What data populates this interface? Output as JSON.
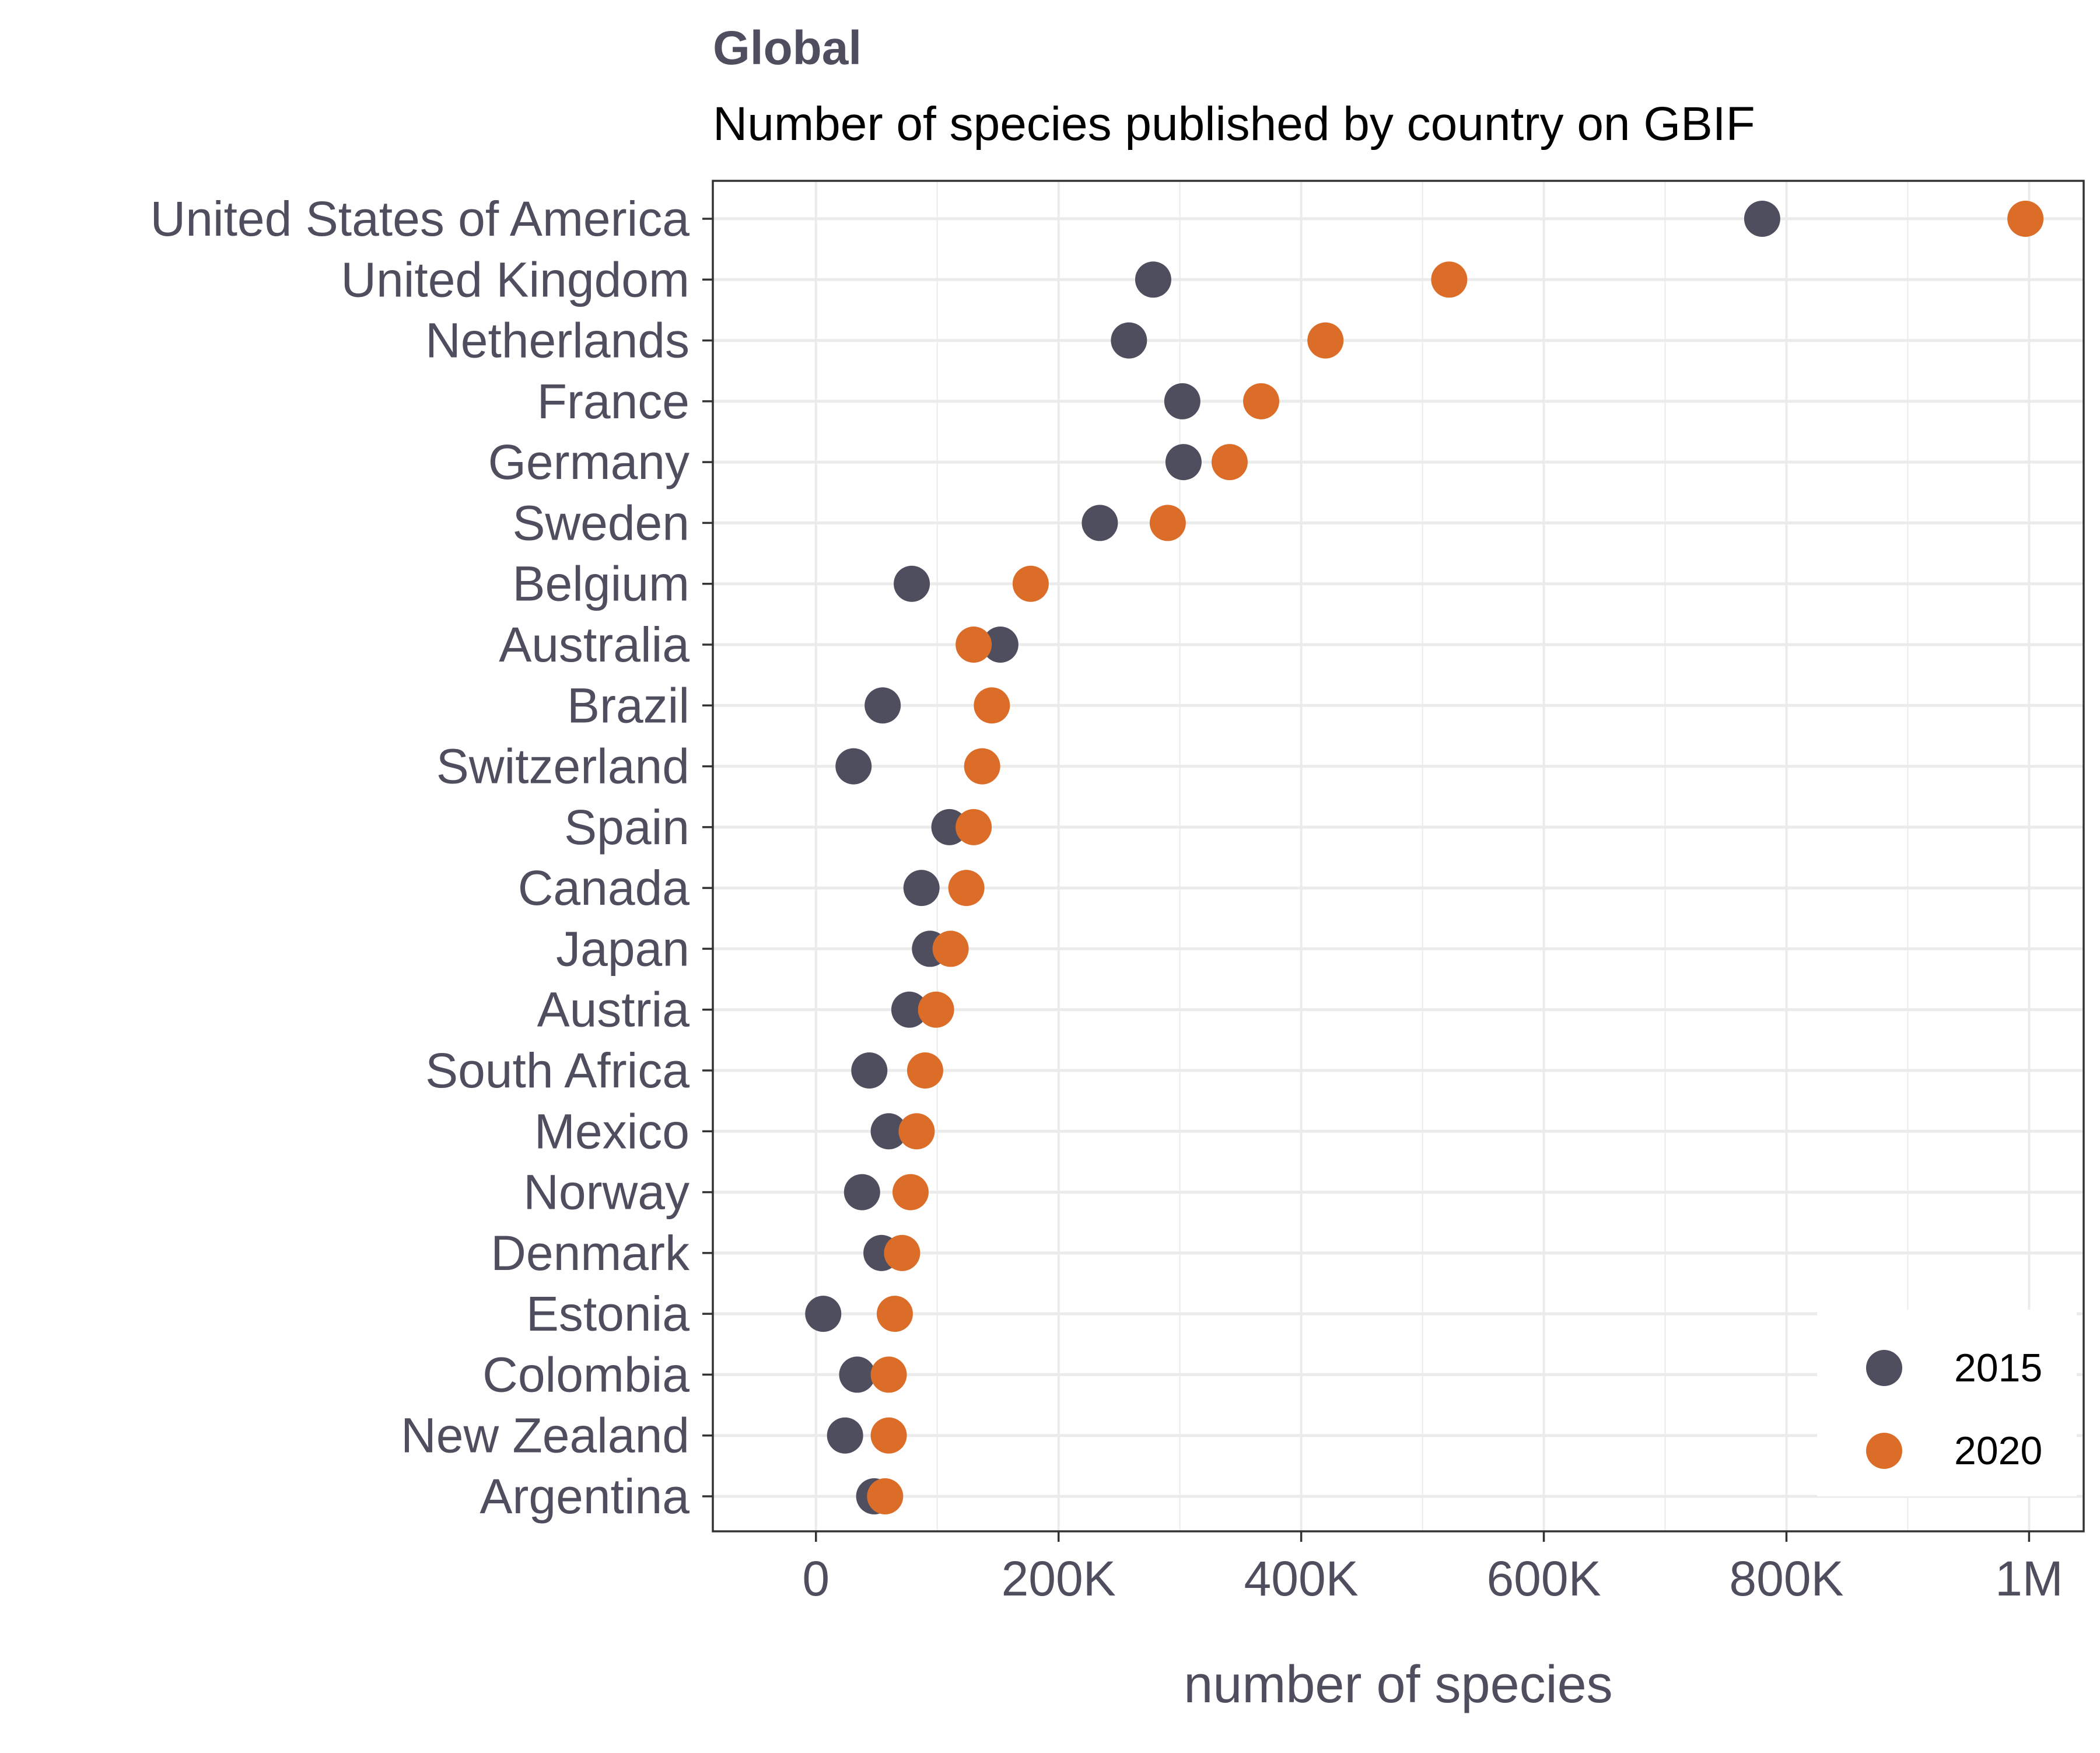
{
  "chart_data": {
    "type": "scatter",
    "title": "Global",
    "subtitle": "Number of species published by country on GBIF",
    "xlabel": "number of species",
    "ylabel": "",
    "xlim": [
      -85000,
      1045000
    ],
    "x_ticks": [
      0,
      200000,
      400000,
      600000,
      800000,
      1000000
    ],
    "x_tick_labels": [
      "0",
      "200K",
      "400K",
      "600K",
      "800K",
      "1M"
    ],
    "grid": true,
    "legend_position": "bottom-right",
    "categories": [
      "United States of America",
      "United Kingdom",
      "Netherlands",
      "France",
      "Germany",
      "Sweden",
      "Belgium",
      "Australia",
      "Brazil",
      "Switzerland",
      "Spain",
      "Canada",
      "Japan",
      "Austria",
      "South Africa",
      "Mexico",
      "Norway",
      "Denmark",
      "Estonia",
      "Colombia",
      "New Zealand",
      "Argentina"
    ],
    "series": [
      {
        "name": "2015",
        "color": "#4e4e5f",
        "values": [
          780000,
          278000,
          258000,
          302000,
          303000,
          234000,
          79000,
          152000,
          55000,
          31000,
          110000,
          87000,
          94000,
          77000,
          44000,
          60000,
          38000,
          54000,
          6000,
          34000,
          24000,
          48000
        ]
      },
      {
        "name": "2020",
        "color": "#dc6d29",
        "values": [
          997000,
          522000,
          420000,
          367000,
          341000,
          290000,
          177000,
          130000,
          145000,
          137000,
          130000,
          124000,
          111000,
          99000,
          90000,
          83000,
          78000,
          71000,
          65000,
          60000,
          60000,
          57000
        ]
      }
    ]
  },
  "colors": {
    "grid": "#ebebeb",
    "panel_border": "#333333",
    "text": "#4e4e5f"
  }
}
